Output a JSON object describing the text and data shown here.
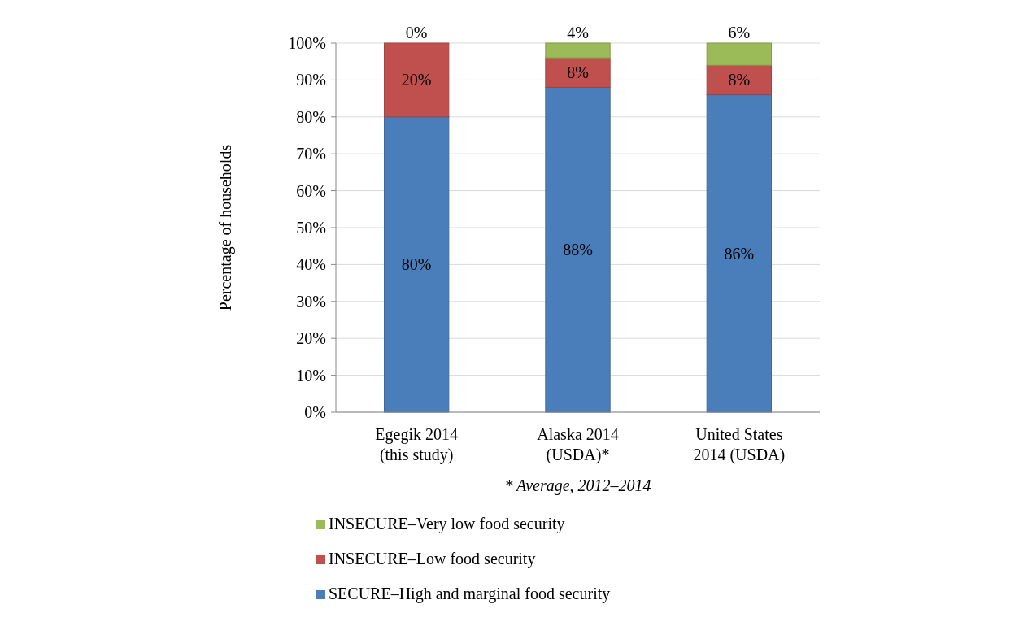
{
  "chart_data": {
    "type": "bar",
    "stacked": true,
    "ylabel": "Percentage of households",
    "categories": [
      "Egegik 2014\n(this study)",
      "Alaska 2014\n(USDA)*",
      "United States\n2014 (USDA)"
    ],
    "series": [
      {
        "name": "SECURE–High and marginal food security",
        "color": "#4a7ebb",
        "values": [
          80,
          88,
          86
        ],
        "value_labels": [
          "80%",
          "88%",
          "86%"
        ]
      },
      {
        "name": "INSECURE–Low food security",
        "color": "#c0504d",
        "values": [
          20,
          8,
          8
        ],
        "value_labels": [
          "20%",
          "8%",
          "8%"
        ]
      },
      {
        "name": "INSECURE–Very low food security",
        "color": "#9bbb59",
        "values": [
          0,
          4,
          6
        ],
        "value_labels": [
          "0%",
          "4%",
          "6%"
        ]
      }
    ],
    "ylim": [
      0,
      100
    ],
    "yticks": [
      {
        "value": 0,
        "label": "0%"
      },
      {
        "value": 10,
        "label": "10%"
      },
      {
        "value": 20,
        "label": "20%"
      },
      {
        "value": 30,
        "label": "30%"
      },
      {
        "value": 40,
        "label": "40%"
      },
      {
        "value": 50,
        "label": "50%"
      },
      {
        "value": 60,
        "label": "60%"
      },
      {
        "value": 70,
        "label": "70%"
      },
      {
        "value": 80,
        "label": "80%"
      },
      {
        "value": 90,
        "label": "90%"
      },
      {
        "value": 100,
        "label": "100%"
      }
    ],
    "grid": "y",
    "legend": "bottom",
    "annotations": [
      "* Average, 2012–2014"
    ]
  }
}
